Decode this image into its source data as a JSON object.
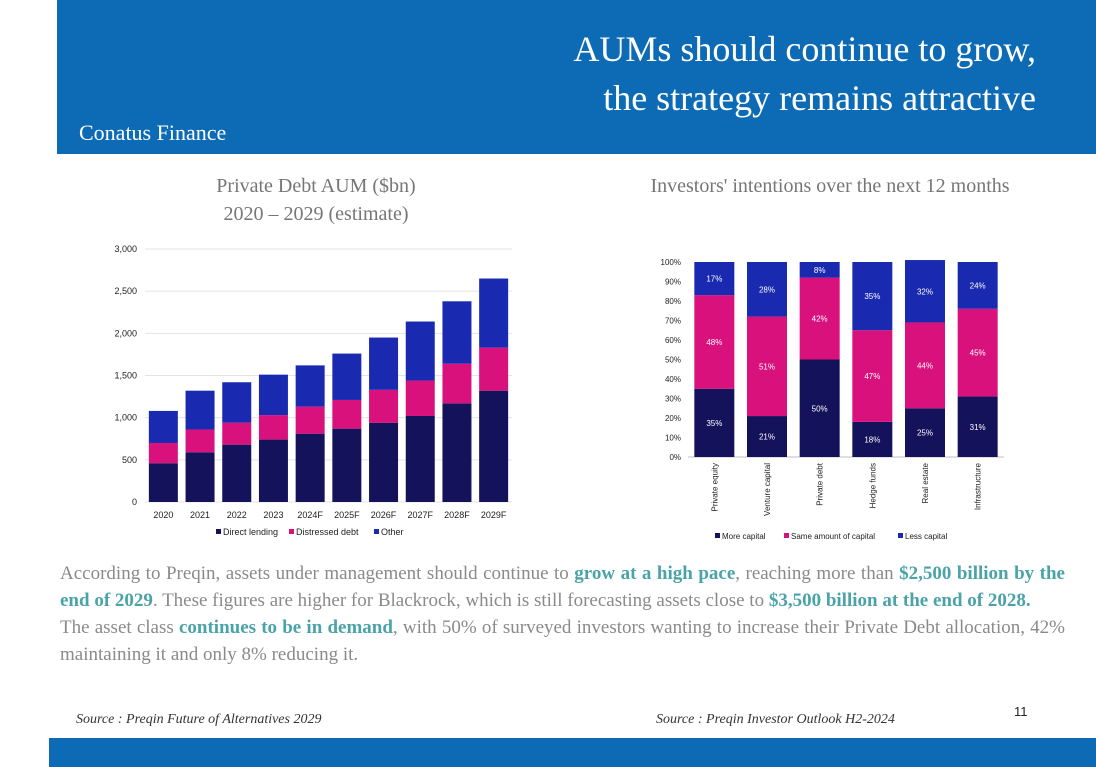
{
  "header": {
    "title_line1": "AUMs should continue to grow,",
    "title_line2": "the strategy remains attractive",
    "company": "Conatus Finance"
  },
  "colors": {
    "header_band": "#0d6bb5",
    "direct_lending": "#14125a",
    "distressed_debt": "#d8117d",
    "other": "#1a2ab0",
    "highlight_text": "#4aa3a8",
    "body_text": "#8a8a8a"
  },
  "chart_data": [
    {
      "type": "bar",
      "stacked": true,
      "title": "Private Debt AUM ($bn)",
      "subtitle": "2020 – 2029 (estimate)",
      "categories": [
        "2020",
        "2021",
        "2022",
        "2023",
        "2024F",
        "2025F",
        "2026F",
        "2027F",
        "2028F",
        "2029F"
      ],
      "series": [
        {
          "name": "Direct lending",
          "values": [
            460,
            590,
            680,
            740,
            810,
            870,
            940,
            1020,
            1170,
            1320
          ]
        },
        {
          "name": "Distressed debt",
          "values": [
            240,
            270,
            260,
            290,
            320,
            340,
            390,
            420,
            470,
            510
          ]
        },
        {
          "name": "Other",
          "values": [
            380,
            460,
            480,
            480,
            490,
            550,
            620,
            700,
            740,
            820
          ]
        }
      ],
      "ylim": [
        0,
        3000
      ],
      "yticks": [
        "0",
        "500",
        "1,000",
        "1,500",
        "2,000",
        "2,500",
        "3,000"
      ],
      "ytick_values": [
        0,
        500,
        1000,
        1500,
        2000,
        2500,
        3000
      ],
      "grid": true,
      "legend": "bottom"
    },
    {
      "type": "bar",
      "stacked": true,
      "percent": true,
      "title": "Investors' intentions over the next 12 months",
      "categories": [
        "Private equity",
        "Venture capital",
        "Private debt",
        "Hedge funds",
        "Real estate",
        "Infrastructure"
      ],
      "series": [
        {
          "name": "More capital",
          "values": [
            35,
            21,
            50,
            18,
            25,
            31
          ],
          "labels": [
            "35%",
            "21%",
            "50%",
            "18%",
            "25%",
            "31%"
          ]
        },
        {
          "name": "Same amount of capital",
          "values": [
            48,
            51,
            42,
            47,
            44,
            45
          ],
          "labels": [
            "48%",
            "51%",
            "42%",
            "47%",
            "44%",
            "45%"
          ]
        },
        {
          "name": "Less capital",
          "values": [
            17,
            28,
            8,
            35,
            32,
            24
          ],
          "labels": [
            "17%",
            "28%",
            "8%",
            "35%",
            "32%",
            "24%"
          ]
        }
      ],
      "ylim": [
        0,
        100
      ],
      "yticks": [
        "0%",
        "10%",
        "20%",
        "30%",
        "40%",
        "50%",
        "60%",
        "70%",
        "80%",
        "90%",
        "100%"
      ],
      "legend": "bottom"
    }
  ],
  "body": {
    "p1_a": "According to Preqin, assets under management should continue to ",
    "p1_b": "grow at a high pace",
    "p1_c": ", reaching more than ",
    "p1_d": "$2,500 billion by the end of 2029",
    "p1_e": ". These figures are higher for Blackrock, which is still forecasting assets close to ",
    "p1_f": "$3,500 billion at the end of 2028.",
    "p2_a": "The asset class ",
    "p2_b": "continues to be in demand",
    "p2_c": ", with 50% of surveyed investors wanting to increase their Private Debt allocation, 42% maintaining it and only 8% reducing it."
  },
  "footer": {
    "source_left": "Source : Preqin Future of Alternatives 2029",
    "source_right": "Source : Preqin Investor Outlook H2-2024",
    "page_number": "11"
  }
}
